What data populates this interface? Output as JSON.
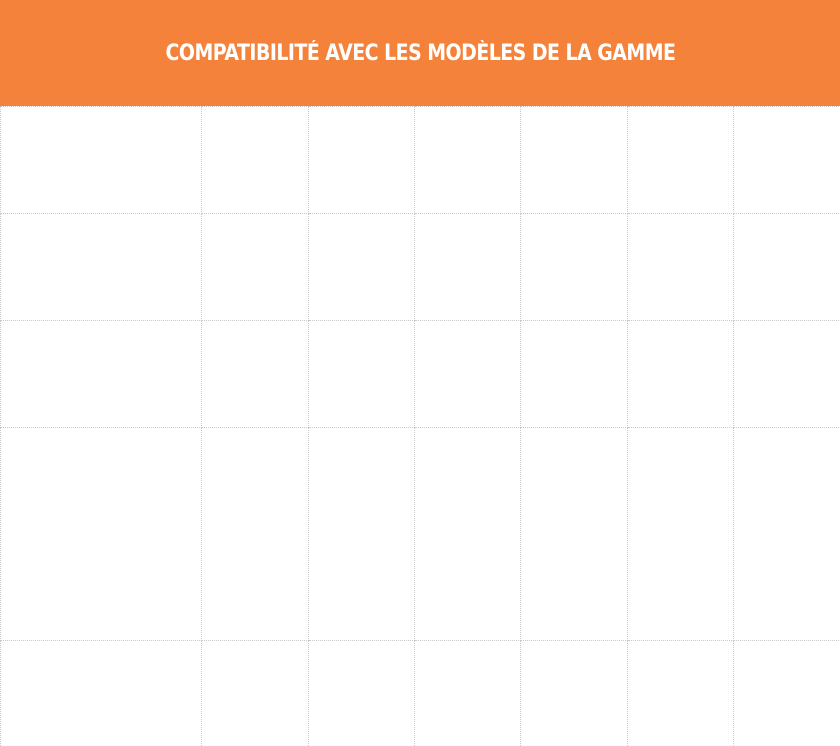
{
  "header": {
    "title": "COMPATIBILITÉ AVEC LES MODÈLES DE LA GAMME",
    "background_color": "#F5823A",
    "text_color": "#FFFFFF"
  },
  "table": {
    "rows": [
      [
        "",
        "",
        "",
        "",
        "",
        "",
        ""
      ],
      [
        "",
        "",
        "",
        "",
        "",
        "",
        ""
      ],
      [
        "",
        "",
        "",
        "",
        "",
        "",
        ""
      ],
      [
        "",
        "",
        "",
        "",
        "",
        "",
        ""
      ],
      [
        "",
        "",
        "",
        "",
        "",
        "",
        ""
      ]
    ],
    "grid_line_color": "#C8C8C8"
  }
}
